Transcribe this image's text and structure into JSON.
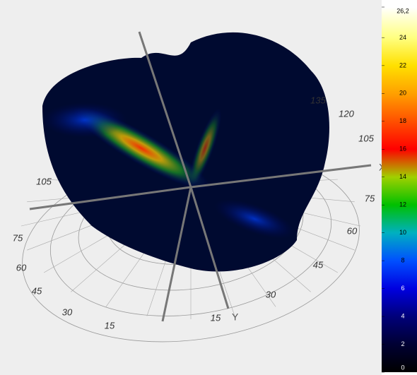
{
  "chart_data": {
    "type": "polar3d",
    "axis_labels": [
      "X",
      "Y"
    ],
    "left_labels": [
      "105",
      "75",
      "60",
      "45",
      "30",
      "15"
    ],
    "right_labels": [
      "135",
      "120",
      "105",
      "75",
      "60",
      "45",
      "30",
      "15"
    ],
    "colorbar": {
      "lim": [
        0,
        26.2
      ],
      "ticks": [
        0,
        2,
        4,
        6,
        8,
        10,
        12,
        14,
        16,
        18,
        20,
        22,
        24,
        {
          "value": 26.2,
          "label": "26,2"
        }
      ],
      "colors": [
        "#000000",
        "#000033",
        "#00007a",
        "#0000e0",
        "#0050ff",
        "#00b0c0",
        "#00c000",
        "#a0d000",
        "#ff0000",
        "#ff5000",
        "#ffa000",
        "#ffe000",
        "#ffff80",
        "#ffffff"
      ]
    }
  }
}
